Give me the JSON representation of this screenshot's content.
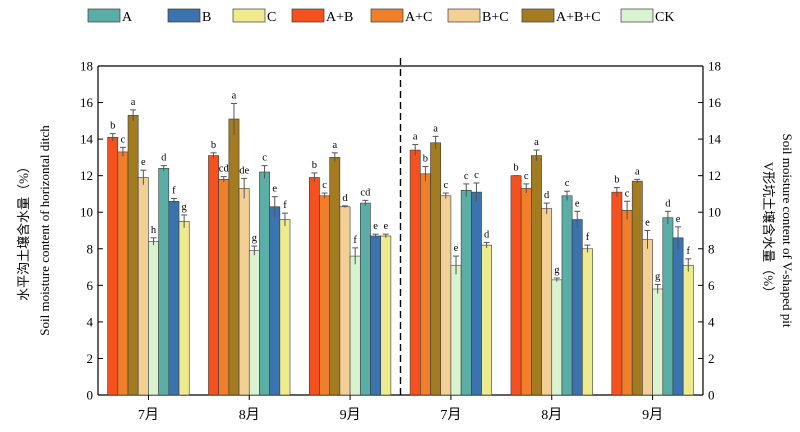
{
  "chart_data": {
    "type": "bar",
    "groups": [
      {
        "panel": "left",
        "label": "7月"
      },
      {
        "panel": "left",
        "label": "8月"
      },
      {
        "panel": "left",
        "label": "9月"
      },
      {
        "panel": "right",
        "label": "7月"
      },
      {
        "panel": "right",
        "label": "8月"
      },
      {
        "panel": "right",
        "label": "9月"
      }
    ],
    "series_order": [
      "A+B",
      "A+C",
      "A+B+C",
      "B+C",
      "CK",
      "A",
      "B",
      "C"
    ],
    "series": [
      {
        "name": "A",
        "color": "#5aaea6",
        "values": [
          12.4,
          12.2,
          10.5,
          11.2,
          10.9,
          9.7
        ],
        "errors": [
          0.15,
          0.35,
          0.15,
          0.35,
          0.25,
          0.35
        ],
        "letters": [
          "d",
          "c",
          "cd",
          "c",
          "c",
          "d"
        ]
      },
      {
        "name": "B",
        "color": "#3a73ad",
        "values": [
          10.6,
          10.3,
          8.7,
          11.1,
          9.6,
          8.6
        ],
        "errors": [
          0.15,
          0.55,
          0.1,
          0.5,
          0.45,
          0.6
        ],
        "letters": [
          "f",
          "e",
          "e",
          "c",
          "e",
          "e"
        ]
      },
      {
        "name": "C",
        "color": "#eeea8e",
        "values": [
          9.5,
          9.6,
          8.7,
          8.2,
          8.0,
          7.1
        ],
        "errors": [
          0.35,
          0.35,
          0.1,
          0.15,
          0.2,
          0.35
        ],
        "letters": [
          "g",
          "f",
          "e",
          "d",
          "f",
          "f"
        ]
      },
      {
        "name": "A+B",
        "color": "#f4511e",
        "values": [
          14.1,
          13.1,
          11.9,
          13.4,
          12.0,
          11.1
        ],
        "errors": [
          0.2,
          0.15,
          0.25,
          0.3,
          0.0,
          0.25
        ],
        "letters": [
          "b",
          "b",
          "b",
          "a",
          "b",
          "b"
        ]
      },
      {
        "name": "A+C",
        "color": "#ef7f2a",
        "values": [
          13.3,
          11.8,
          10.9,
          12.1,
          11.3,
          10.1
        ],
        "errors": [
          0.25,
          0.15,
          0.15,
          0.4,
          0.25,
          0.5
        ],
        "letters": [
          "c",
          "cd",
          "c",
          "b",
          "c",
          "c"
        ]
      },
      {
        "name": "B+C",
        "color": "#f2d095",
        "values": [
          11.9,
          11.3,
          10.3,
          10.9,
          10.2,
          8.5
        ],
        "errors": [
          0.4,
          0.55,
          0.05,
          0.15,
          0.3,
          0.5
        ],
        "letters": [
          "e",
          "de",
          "d",
          "c",
          "d",
          "e"
        ]
      },
      {
        "name": "A+B+C",
        "color": "#a37b20",
        "values": [
          15.3,
          15.1,
          13.0,
          13.8,
          13.1,
          11.7
        ],
        "errors": [
          0.3,
          0.85,
          0.25,
          0.35,
          0.3,
          0.1
        ],
        "letters": [
          "a",
          "a",
          "a",
          "a",
          "a",
          "a"
        ]
      },
      {
        "name": "CK",
        "color": "#d9f2cf",
        "values": [
          8.4,
          7.9,
          7.6,
          7.1,
          6.3,
          5.8
        ],
        "errors": [
          0.2,
          0.25,
          0.45,
          0.5,
          0.1,
          0.25
        ],
        "letters": [
          "h",
          "g",
          "f",
          "e",
          "g",
          "g"
        ]
      }
    ],
    "ylim": [
      0,
      18
    ],
    "yticks": [
      0,
      2,
      4,
      6,
      8,
      10,
      12,
      14,
      16,
      18
    ],
    "ylabel_left": [
      "水平沟土壤含水量（%）",
      "Soil moisture content of horizontal ditch"
    ],
    "ylabel_right": [
      "V形坑土壤含水量（%）",
      "Soil moisture content of V-shaped pit"
    ],
    "legend_position": "top",
    "grid": false
  },
  "colors": {
    "axis": "#000000",
    "errorbar": "#555555"
  }
}
